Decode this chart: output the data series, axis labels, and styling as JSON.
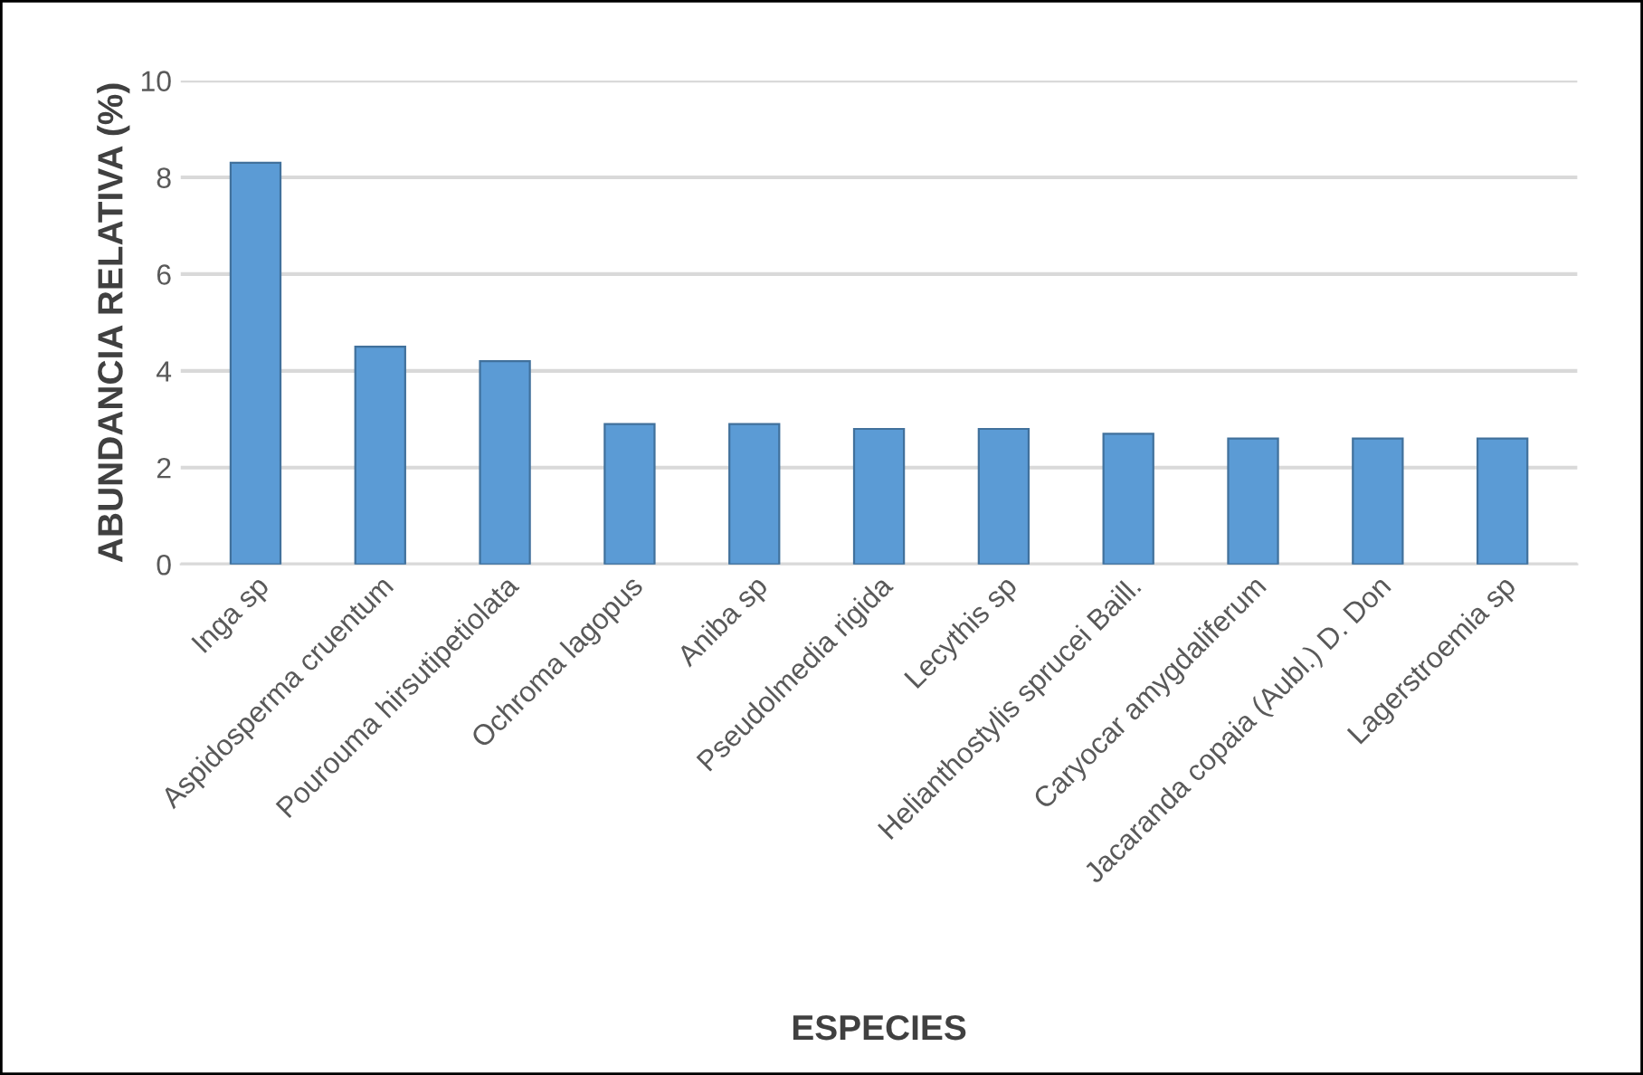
{
  "chart_data": {
    "type": "bar",
    "xlabel": "ESPECIES",
    "ylabel": "ABUNDANCIA RELATIVA (%)",
    "categories": [
      "Inga sp",
      "Aspidosperma cruentum",
      "Pourouma hirsutipetiolata",
      "Ochroma lagopus",
      "Aniba sp",
      "Pseudolmedia rigida",
      "Lecythis sp",
      "Helianthostylis sprucei Baill.",
      "Caryocar amygdaliferum",
      "Jacaranda copaia (Aubl.) D. Don",
      "Lagerstroemia sp"
    ],
    "values": [
      8.3,
      4.5,
      4.2,
      2.9,
      2.9,
      2.8,
      2.8,
      2.7,
      2.6,
      2.6,
      2.6
    ],
    "color": "#5b9bd5",
    "ylim": [
      0,
      10
    ],
    "yticks": [
      0,
      2,
      4,
      6,
      8,
      10
    ],
    "grid": "y",
    "legend": false
  }
}
